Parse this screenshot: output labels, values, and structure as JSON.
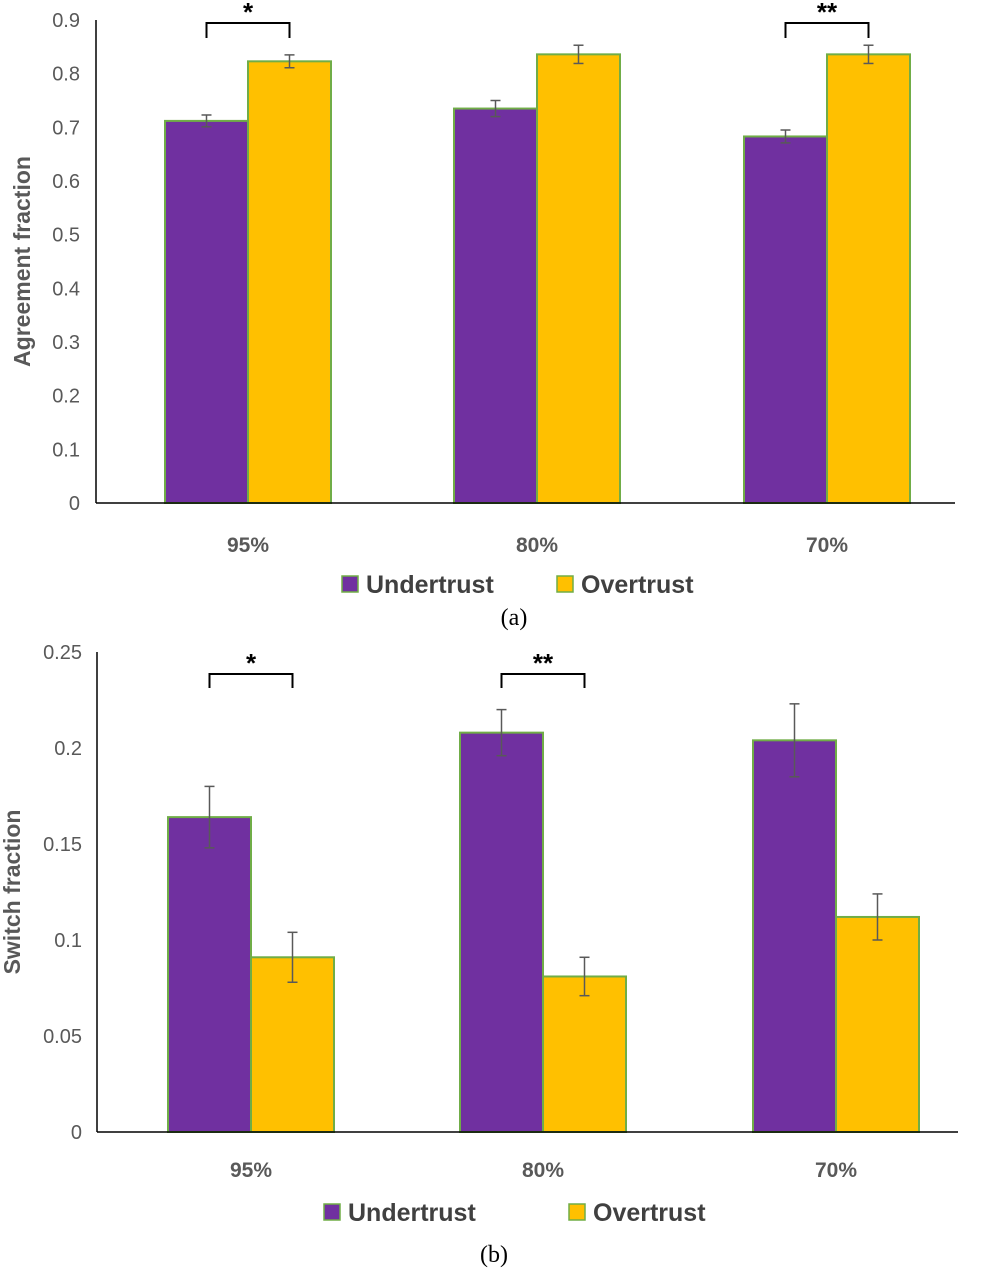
{
  "colors": {
    "undertrust": "#7030a0",
    "overtrust": "#ffc000",
    "bar_outline": "#70ad47",
    "axis": "#000000",
    "error_bar": "#595959"
  },
  "chart_data": [
    {
      "type": "bar",
      "panel": "a",
      "caption": "(a)",
      "title": "",
      "xlabel": "",
      "ylabel": "Agreement fraction",
      "ylim": [
        0,
        0.9
      ],
      "yticks": [
        0,
        0.1,
        0.2,
        0.3,
        0.4,
        0.5,
        0.6,
        0.7,
        0.8,
        0.9
      ],
      "ytick_labels": [
        "0",
        "0.1",
        "0.2",
        "0.3",
        "0.4",
        "0.5",
        "0.6",
        "0.7",
        "0.8",
        "0.9"
      ],
      "categories": [
        "95%",
        "80%",
        "70%"
      ],
      "series": [
        {
          "name": "Undertrust",
          "values": [
            0.712,
            0.735,
            0.683
          ],
          "errors": [
            0.011,
            0.015,
            0.012
          ]
        },
        {
          "name": "Overtrust",
          "values": [
            0.823,
            0.836,
            0.836
          ],
          "errors": [
            0.012,
            0.017,
            0.017
          ]
        }
      ],
      "significance": [
        {
          "category": "95%",
          "label": "*"
        },
        {
          "category": "70%",
          "label": "**"
        }
      ],
      "legend": {
        "position": "bottom",
        "entries": [
          "Undertrust",
          "Overtrust"
        ]
      }
    },
    {
      "type": "bar",
      "panel": "b",
      "caption": "(b)",
      "title": "",
      "xlabel": "",
      "ylabel": "Switch fraction",
      "ylim": [
        0,
        0.25
      ],
      "yticks": [
        0,
        0.05,
        0.1,
        0.15,
        0.2,
        0.25
      ],
      "ytick_labels": [
        "0",
        "0.05",
        "0.1",
        "0.15",
        "0.2",
        "0.25"
      ],
      "categories": [
        "95%",
        "80%",
        "70%"
      ],
      "series": [
        {
          "name": "Undertrust",
          "values": [
            0.164,
            0.208,
            0.204
          ],
          "errors": [
            0.016,
            0.012,
            0.019
          ]
        },
        {
          "name": "Overtrust",
          "values": [
            0.091,
            0.081,
            0.112
          ],
          "errors": [
            0.013,
            0.01,
            0.012
          ]
        }
      ],
      "significance": [
        {
          "category": "95%",
          "label": "*"
        },
        {
          "category": "80%",
          "label": "**"
        }
      ],
      "legend": {
        "position": "bottom",
        "entries": [
          "Undertrust",
          "Overtrust"
        ]
      }
    }
  ]
}
